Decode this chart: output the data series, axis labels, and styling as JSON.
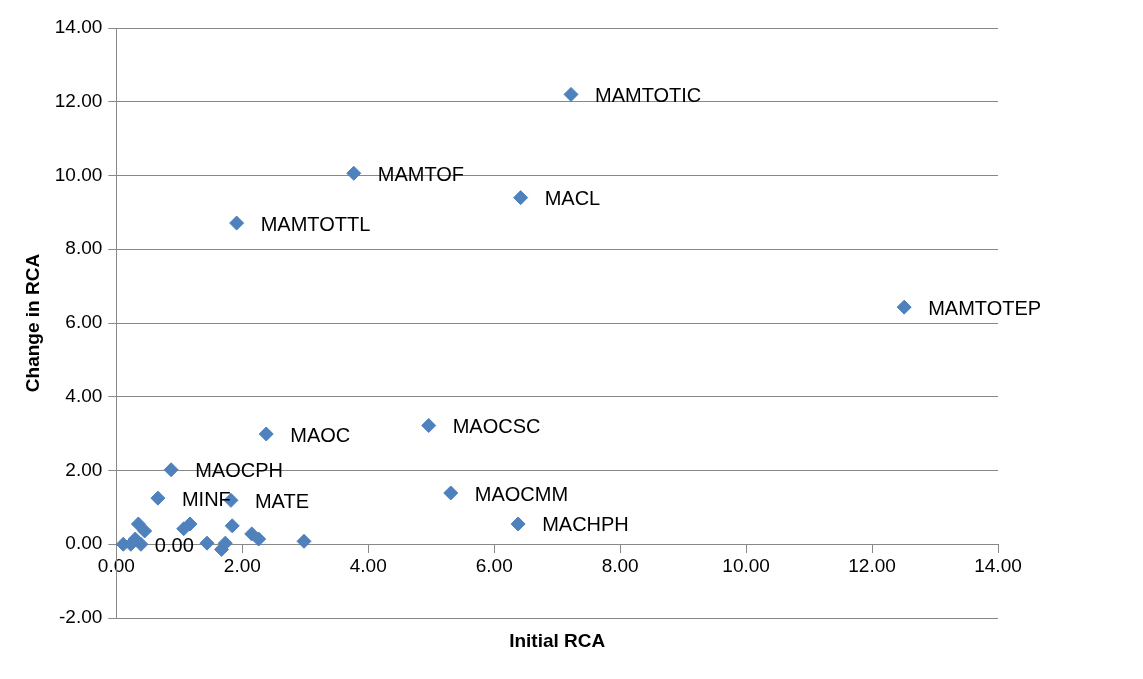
{
  "chart_data": {
    "type": "scatter",
    "xlabel": "Initial RCA",
    "ylabel": "Change in RCA",
    "x": [
      7.22,
      3.77,
      6.42,
      1.91,
      12.51,
      2.38,
      4.96,
      0.87,
      5.31,
      6.38,
      0.66,
      1.82,
      0.11,
      0.23,
      0.35,
      0.45,
      0.39,
      0.3,
      1.07,
      1.17,
      1.44,
      1.67,
      1.73,
      1.84,
      2.15,
      2.26,
      2.98
    ],
    "values": [
      12.2,
      10.06,
      9.4,
      8.71,
      6.43,
      2.99,
      3.22,
      2.02,
      1.39,
      0.55,
      1.25,
      1.19,
      0.0,
      0.0,
      0.55,
      0.36,
      0.0,
      0.14,
      0.42,
      0.55,
      0.03,
      -0.14,
      0.03,
      0.5,
      0.28,
      0.14,
      0.08
    ],
    "color": "#4f81bd",
    "marker": "diamond",
    "grid": "y",
    "legend": false,
    "xlim": [
      0,
      14
    ],
    "xticks": [
      {
        "value": 0,
        "label": "0.00"
      },
      {
        "value": 2,
        "label": "2.00"
      },
      {
        "value": 4,
        "label": "4.00"
      },
      {
        "value": 6,
        "label": "6.00"
      },
      {
        "value": 8,
        "label": "8.00"
      },
      {
        "value": 10,
        "label": "10.00"
      },
      {
        "value": 12,
        "label": "12.00"
      },
      {
        "value": 14,
        "label": "14.00"
      }
    ],
    "ylim": [
      -2,
      14
    ],
    "yticks": [
      {
        "value": -2,
        "label": "-2.00"
      },
      {
        "value": 0,
        "label": "0.00"
      },
      {
        "value": 2,
        "label": "2.00"
      },
      {
        "value": 4,
        "label": "4.00"
      },
      {
        "value": 6,
        "label": "6.00"
      },
      {
        "value": 8,
        "label": "8.00"
      },
      {
        "value": 10,
        "label": "10.00"
      },
      {
        "value": 12,
        "label": "12.00"
      },
      {
        "value": 14,
        "label": "14.00"
      }
    ],
    "annotations": [
      {
        "text": "MAMTOTIC",
        "x": 7.22,
        "y": 12.2
      },
      {
        "text": "MAMTOF",
        "x": 3.77,
        "y": 10.06
      },
      {
        "text": "MACL",
        "x": 6.42,
        "y": 9.4
      },
      {
        "text": "MAMTOTTL",
        "x": 1.91,
        "y": 8.71
      },
      {
        "text": "MAMTOTEP",
        "x": 12.51,
        "y": 6.43
      },
      {
        "text": "MAOC",
        "x": 2.38,
        "y": 2.99
      },
      {
        "text": "MAOCSC",
        "x": 4.96,
        "y": 3.22
      },
      {
        "text": "MAOCPH",
        "x": 0.87,
        "y": 2.02
      },
      {
        "text": "MAOCMM",
        "x": 5.31,
        "y": 1.39
      },
      {
        "text": "MACHPH",
        "x": 6.38,
        "y": 0.55
      },
      {
        "text": "MINF",
        "x": 0.66,
        "y": 1.25
      },
      {
        "text": "MATE",
        "x": 1.82,
        "y": 1.19
      },
      {
        "text": "0.00",
        "x": 0.23,
        "y": 0.0
      }
    ]
  }
}
